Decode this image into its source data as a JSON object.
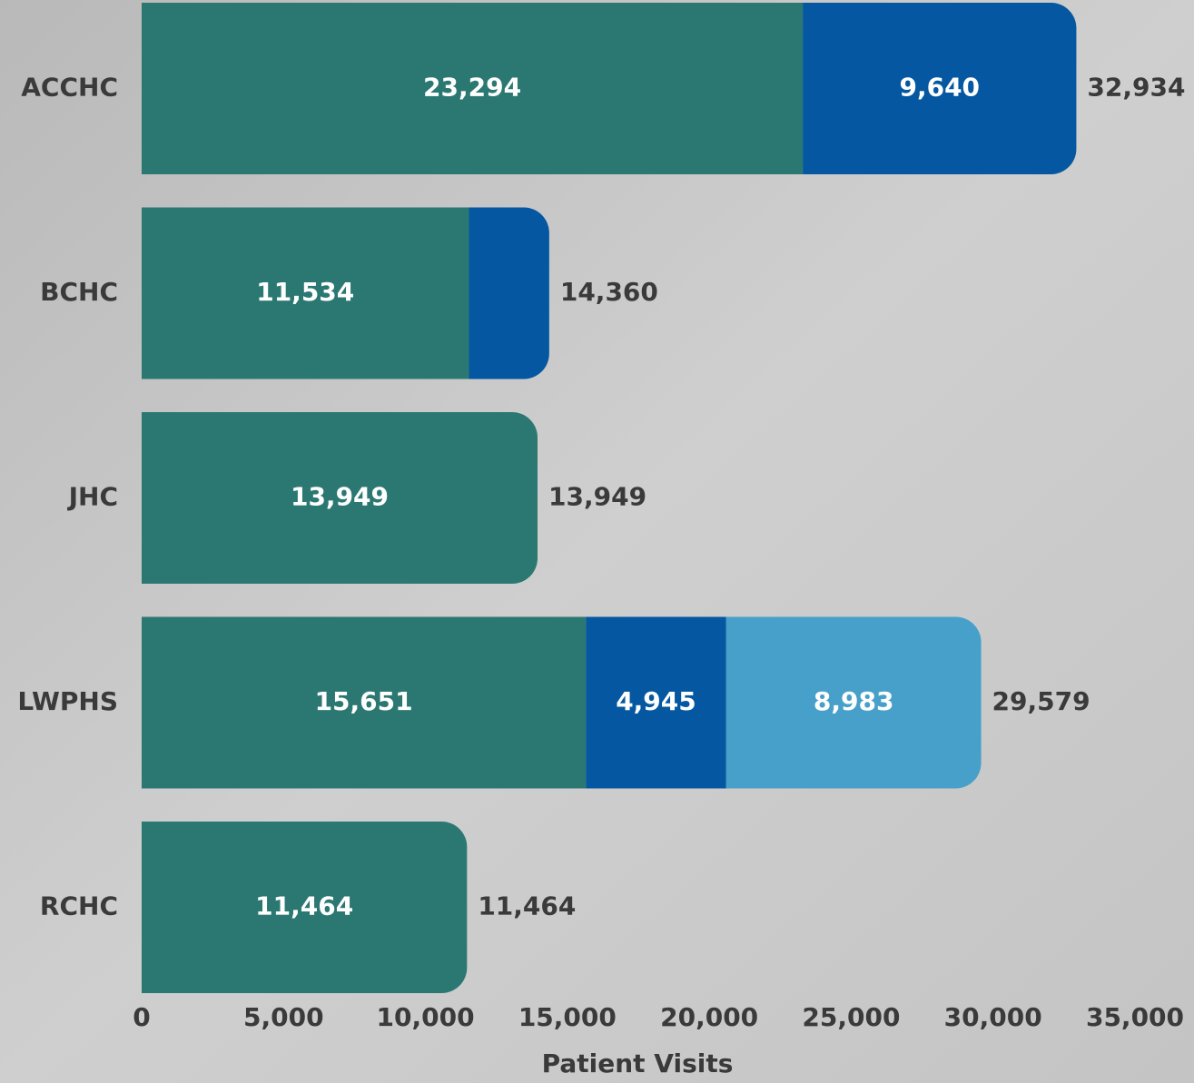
{
  "chart_data": {
    "type": "stacked-bar-horizontal",
    "categories": [
      "ACCHC",
      "BCHC",
      "JHC",
      "LWPHS",
      "RCHC"
    ],
    "series": [
      {
        "color": "#2b7873",
        "values": [
          23294,
          11534,
          13949,
          15651,
          11464
        ],
        "value_labels": [
          "23,294",
          "11,534",
          "13,949",
          "15,651",
          "11,464"
        ]
      },
      {
        "color": "#0457a0",
        "values": [
          9640,
          2826,
          null,
          4945,
          null
        ],
        "value_labels": [
          "9,640",
          null,
          null,
          "4,945",
          null
        ]
      },
      {
        "color": "#47a0c9",
        "values": [
          null,
          null,
          null,
          8983,
          null
        ],
        "value_labels": [
          null,
          null,
          null,
          "8,983",
          null
        ]
      }
    ],
    "totals": [
      32934,
      14360,
      13949,
      29579,
      11464
    ],
    "total_labels": [
      "32,934",
      "14,360",
      "13,949",
      "29,579",
      "11,464"
    ],
    "xlabel": "Patient Visits",
    "xlim": [
      0,
      35000
    ],
    "xticks": [
      0,
      {
        "value": 5000,
        "label": "5,000"
      },
      {
        "value": 10000,
        "label": "10,000"
      },
      {
        "value": 15000,
        "label": "15,000"
      },
      {
        "value": 20000,
        "label": "20,000"
      },
      {
        "value": 25000,
        "label": "25,000"
      },
      {
        "value": 30000,
        "label": "30,000"
      },
      {
        "value": 35000,
        "label": "35,000"
      }
    ],
    "grid": false
  }
}
